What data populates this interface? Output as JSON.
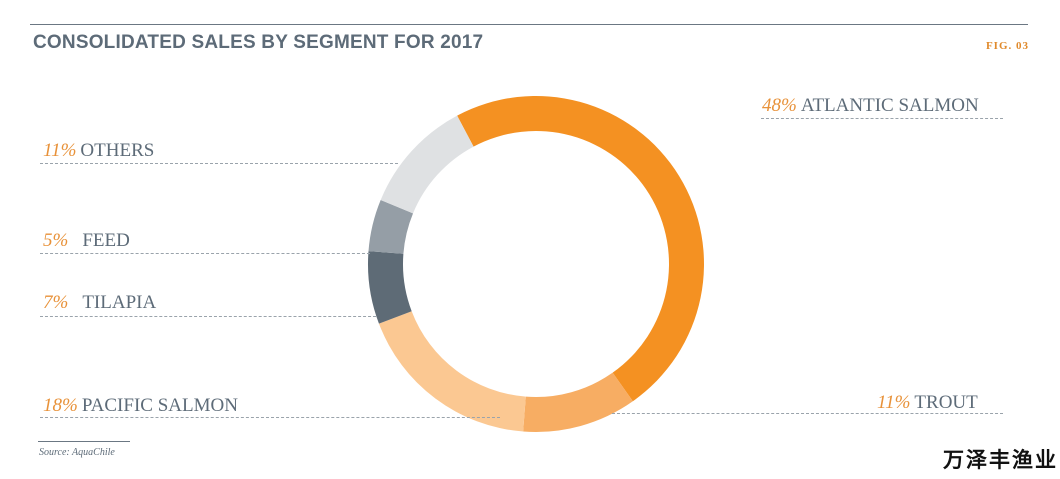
{
  "header": {
    "title": "CONSOLIDATED SALES BY SEGMENT FOR 2017",
    "fig": "FIG. 03"
  },
  "source": "Source: AquaChile",
  "watermark": "万泽丰渔业",
  "colors": {
    "atlantic_salmon": "#f49122",
    "trout": "#f7ad63",
    "pacific_salmon": "#fbc892",
    "tilapia": "#5e6b76",
    "feed": "#959ea6",
    "others": "#dfe1e3",
    "pct_text": "#e8923a",
    "label_text": "#5d6b78"
  },
  "chart_data": {
    "type": "pie",
    "variant": "donut",
    "title": "CONSOLIDATED SALES BY SEGMENT FOR 2017",
    "categories": [
      "ATLANTIC SALMON",
      "TROUT",
      "PACIFIC SALMON",
      "TILAPIA",
      "FEED",
      "OTHERS"
    ],
    "values": [
      48,
      11,
      18,
      7,
      5,
      11
    ],
    "labels": [
      {
        "pct": "48%",
        "name": "ATLANTIC SALMON"
      },
      {
        "pct": "11%",
        "name": "TROUT"
      },
      {
        "pct": "18%",
        "name": "PACIFIC SALMON"
      },
      {
        "pct": "7%",
        "name": "TILAPIA"
      },
      {
        "pct": "5%",
        "name": "FEED"
      },
      {
        "pct": "11%",
        "name": "OTHERS"
      }
    ]
  }
}
